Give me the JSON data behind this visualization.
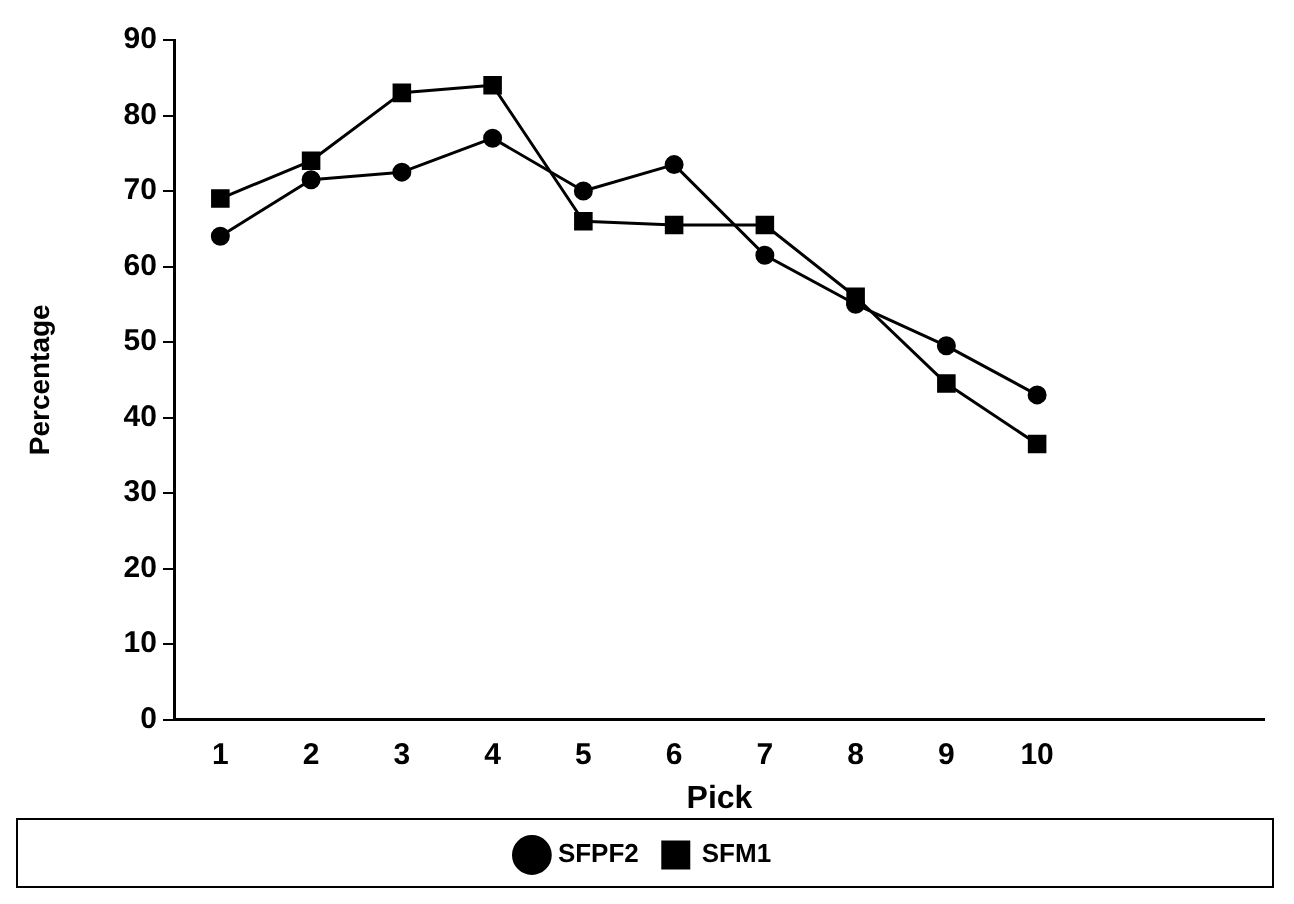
{
  "chart_data": {
    "type": "line",
    "xlabel": "Pick",
    "ylabel": "Percentage",
    "categories": [
      "1",
      "2",
      "3",
      "4",
      "5",
      "6",
      "7",
      "8",
      "9",
      "10",
      null,
      null
    ],
    "series": [
      {
        "name": "SFPF2",
        "color": "#000000",
        "marker": "circle",
        "values": [
          64,
          71.5,
          72.5,
          77,
          70,
          73.5,
          61.5,
          55,
          49.5,
          43,
          null,
          null
        ]
      },
      {
        "name": "SFM1",
        "color": "#000000",
        "marker": "square",
        "values": [
          69,
          74,
          83,
          84,
          66,
          65.5,
          65.5,
          56,
          44.5,
          36.5,
          null,
          null
        ]
      }
    ],
    "ylim": [
      0,
      90
    ],
    "yticks": [
      0,
      10,
      20,
      30,
      40,
      50,
      60,
      70,
      80,
      90
    ],
    "grid": false,
    "legend": "bottom"
  }
}
